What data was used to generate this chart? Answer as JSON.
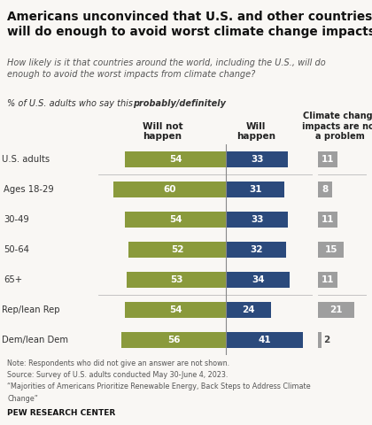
{
  "title": "Americans unconvinced that U.S. and other countries\nwill do enough to avoid worst climate change impacts",
  "subtitle": "How likely is it that countries around the world, including the U.S., will do\nenough to avoid the worst impacts from climate change?",
  "pct_label": "% of U.S. adults who say this ",
  "pct_bold": "probably/definitely",
  "pct_suffix": " ...",
  "col_header_left": "Will not\nhappen",
  "col_header_mid": "Will\nhappen",
  "col_header_right": "Climate change\nimpacts are not\na problem",
  "categories": [
    "U.S. adults",
    "Ages 18-29",
    "30-49",
    "50-64",
    "65+",
    "Rep/lean Rep",
    "Dem/lean Dem"
  ],
  "will_not_happen": [
    54,
    60,
    54,
    52,
    53,
    54,
    56
  ],
  "will_happen": [
    33,
    31,
    33,
    32,
    34,
    24,
    41
  ],
  "not_a_problem": [
    11,
    8,
    11,
    15,
    11,
    21,
    2
  ],
  "color_will_not": "#8a9a3c",
  "color_will": "#2b4a7c",
  "color_not_problem": "#9e9e9e",
  "note_line1": "Note: Respondents who did not give an answer are not shown.",
  "note_line2": "Source: Survey of U.S. adults conducted May 30-June 4, 2023.",
  "note_line3": "“Majorities of Americans Prioritize Renewable Energy, Back Steps to Address Climate",
  "note_line4": "Change”",
  "footer": "PEW RESEARCH CENTER",
  "bg_color": "#f9f7f4",
  "indented": [
    "Ages 18-29",
    "30-49",
    "50-64",
    "65+"
  ]
}
